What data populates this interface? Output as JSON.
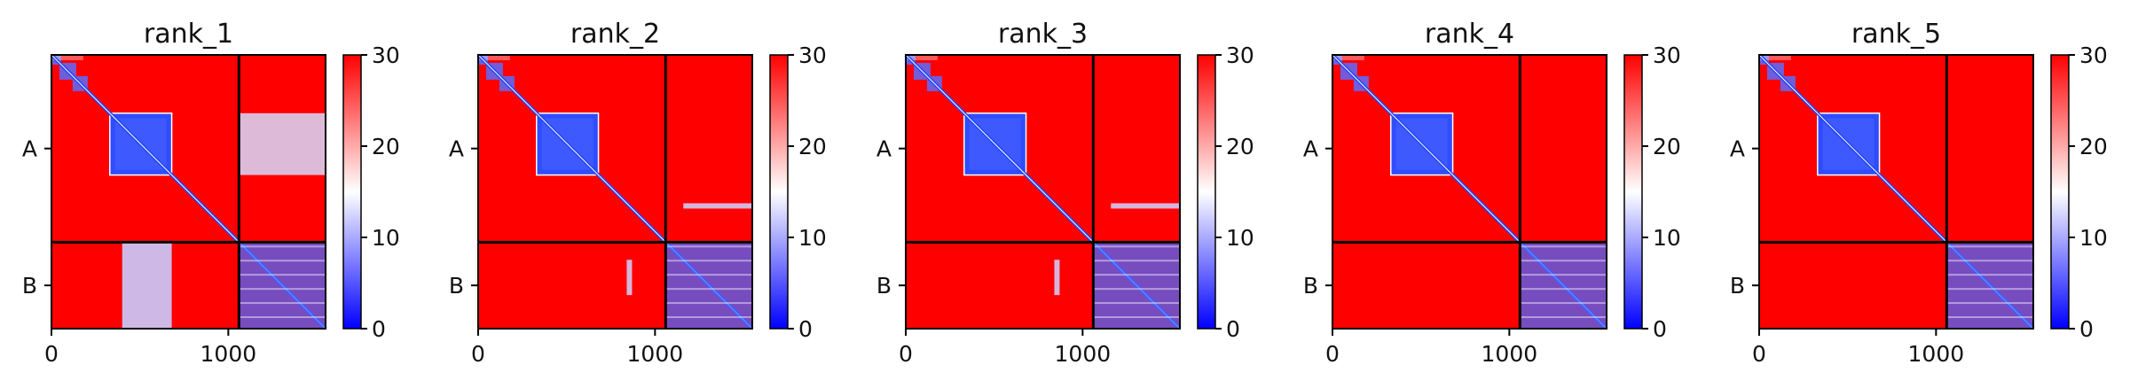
{
  "colormap": {
    "low_color": "#0000ff",
    "mid_color": "#ffffff",
    "high_color": "#ff0000"
  },
  "chart_data": [
    {
      "type": "heatmap",
      "title": "rank_1",
      "xlim": [
        0,
        1550
      ],
      "x_ticks": [
        "0",
        "1000"
      ],
      "y_ticks": [
        "A",
        "B"
      ],
      "chain_boundary": 1060,
      "colorbar": {
        "range": [
          0,
          30
        ],
        "ticks": [
          "0",
          "10",
          "20",
          "30"
        ]
      },
      "off_diagonal_low": true,
      "interchain_contact": false
    },
    {
      "type": "heatmap",
      "title": "rank_2",
      "xlim": [
        0,
        1550
      ],
      "x_ticks": [
        "0",
        "1000"
      ],
      "y_ticks": [
        "A",
        "B"
      ],
      "chain_boundary": 1060,
      "colorbar": {
        "range": [
          0,
          30
        ],
        "ticks": [
          "0",
          "10",
          "20",
          "30"
        ]
      },
      "off_diagonal_low": false,
      "interchain_contact": true
    },
    {
      "type": "heatmap",
      "title": "rank_3",
      "xlim": [
        0,
        1550
      ],
      "x_ticks": [
        "0",
        "1000"
      ],
      "y_ticks": [
        "A",
        "B"
      ],
      "chain_boundary": 1060,
      "colorbar": {
        "range": [
          0,
          30
        ],
        "ticks": [
          "0",
          "10",
          "20",
          "30"
        ]
      },
      "off_diagonal_low": false,
      "interchain_contact": true
    },
    {
      "type": "heatmap",
      "title": "rank_4",
      "xlim": [
        0,
        1550
      ],
      "x_ticks": [
        "0",
        "1000"
      ],
      "y_ticks": [
        "A",
        "B"
      ],
      "chain_boundary": 1060,
      "colorbar": {
        "range": [
          0,
          30
        ],
        "ticks": [
          "0",
          "10",
          "20",
          "30"
        ]
      },
      "off_diagonal_low": false,
      "interchain_contact": false
    },
    {
      "type": "heatmap",
      "title": "rank_5",
      "xlim": [
        0,
        1550
      ],
      "x_ticks": [
        "0",
        "1000"
      ],
      "y_ticks": [
        "A",
        "B"
      ],
      "chain_boundary": 1060,
      "colorbar": {
        "range": [
          0,
          30
        ],
        "ticks": [
          "0",
          "10",
          "20",
          "30"
        ]
      },
      "off_diagonal_low": false,
      "interchain_contact": false
    }
  ]
}
